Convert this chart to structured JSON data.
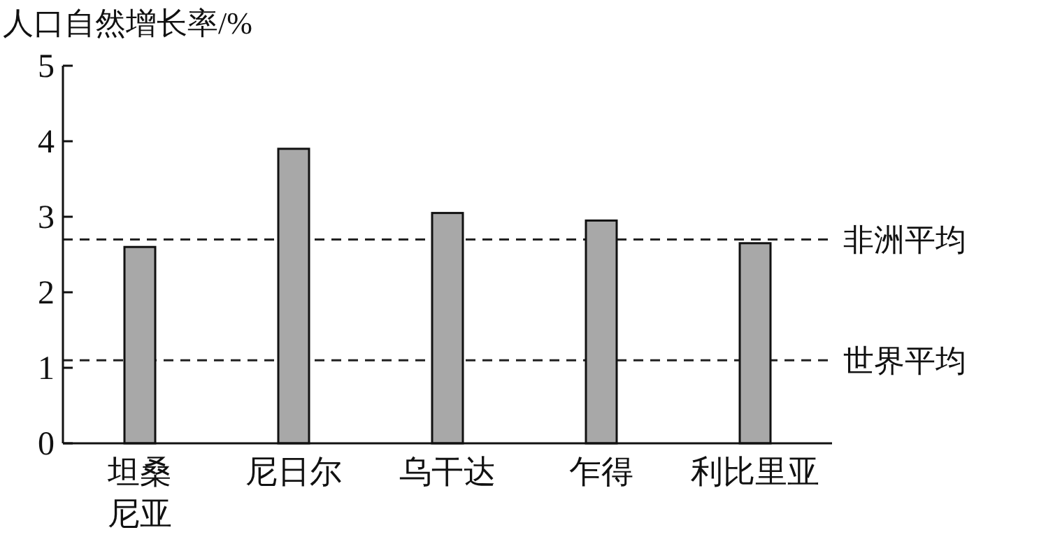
{
  "chart_data": {
    "type": "bar",
    "ylabel": "人口自然增长率/%",
    "categories": [
      "坦桑尼亚",
      "尼日尔",
      "乌干达",
      "乍得",
      "利比里亚"
    ],
    "values": [
      2.6,
      3.9,
      3.05,
      2.95,
      2.65
    ],
    "color": "#a8a8a8",
    "ylim": [
      0,
      5
    ],
    "yticks": [
      0,
      1,
      2,
      3,
      4,
      5
    ],
    "grid": false,
    "ref_lines": [
      {
        "axis": "y",
        "value": 2.7,
        "label": "非洲平均",
        "line_style": "dashed"
      },
      {
        "axis": "y",
        "value": 1.1,
        "label": "世界平均",
        "line_style": "dashed"
      }
    ]
  }
}
